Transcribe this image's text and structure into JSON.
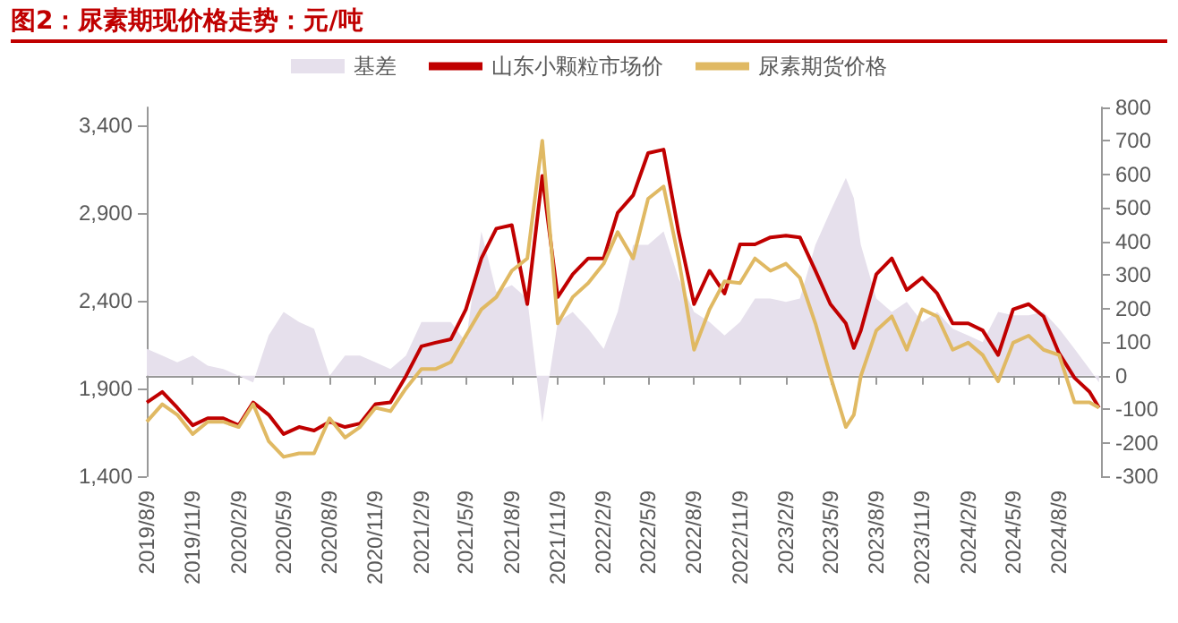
{
  "chart_data": {
    "type": "line",
    "title": "图2：尿素期现价格走势：元/吨",
    "x": [
      "2019-08-09",
      "2019-09-09",
      "2019-10-09",
      "2019-11-09",
      "2019-12-09",
      "2020-01-09",
      "2020-02-09",
      "2020-03-09",
      "2020-04-09",
      "2020-05-09",
      "2020-06-09",
      "2020-07-09",
      "2020-08-09",
      "2020-09-09",
      "2020-10-09",
      "2020-11-09",
      "2020-12-09",
      "2021-01-09",
      "2021-02-09",
      "2021-03-09",
      "2021-04-09",
      "2021-05-09",
      "2021-06-09",
      "2021-07-09",
      "2021-08-09",
      "2021-09-09",
      "2021-10-09",
      "2021-11-09",
      "2021-12-09",
      "2022-01-09",
      "2022-02-09",
      "2022-03-09",
      "2022-04-09",
      "2022-05-09",
      "2022-06-09",
      "2022-07-09",
      "2022-08-09",
      "2022-09-09",
      "2022-10-09",
      "2022-11-09",
      "2022-12-09",
      "2023-01-09",
      "2023-02-09",
      "2023-03-09",
      "2023-04-09",
      "2023-05-09",
      "2023-06-09",
      "2023-06-25",
      "2023-07-09",
      "2023-08-09",
      "2023-09-09",
      "2023-10-09",
      "2023-11-09",
      "2023-12-09",
      "2024-01-09",
      "2024-02-09",
      "2024-03-09",
      "2024-04-09",
      "2024-05-09",
      "2024-06-09",
      "2024-07-09",
      "2024-08-09",
      "2024-09-09",
      "2024-10-09",
      "2024-10-28"
    ],
    "series": [
      {
        "name": "基差",
        "type": "area",
        "axis": "y2",
        "color": "#e6e0ec",
        "values": [
          80,
          60,
          40,
          60,
          30,
          20,
          0,
          -20,
          120,
          190,
          160,
          140,
          0,
          60,
          60,
          40,
          20,
          60,
          160,
          160,
          160,
          100,
          430,
          250,
          270,
          230,
          -140,
          160,
          190,
          140,
          80,
          190,
          390,
          390,
          430,
          290,
          190,
          160,
          120,
          160,
          230,
          230,
          220,
          230,
          390,
          490,
          590,
          530,
          390,
          230,
          190,
          220,
          160,
          190,
          140,
          120,
          100,
          190,
          180,
          180,
          190,
          140,
          80,
          20,
          -20
        ]
      },
      {
        "name": "山东小颗粒市场价",
        "color": "#c00000",
        "values": [
          1820,
          1880,
          1790,
          1690,
          1730,
          1730,
          1690,
          1820,
          1750,
          1640,
          1680,
          1660,
          1710,
          1680,
          1700,
          1810,
          1820,
          1970,
          2140,
          2160,
          2180,
          2350,
          2640,
          2810,
          2830,
          2380,
          3110,
          2420,
          2550,
          2640,
          2640,
          2900,
          3000,
          3240,
          3260,
          2790,
          2380,
          2570,
          2440,
          2720,
          2720,
          2760,
          2770,
          2760,
          2570,
          2380,
          2270,
          2130,
          2230,
          2550,
          2640,
          2460,
          2530,
          2440,
          2270,
          2270,
          2230,
          2090,
          2350,
          2380,
          2310,
          2100,
          1960,
          1880,
          1790
        ]
      },
      {
        "name": "尿素期货价格",
        "color": "#e0b963",
        "values": [
          1710,
          1810,
          1750,
          1640,
          1710,
          1710,
          1680,
          1810,
          1600,
          1510,
          1530,
          1530,
          1730,
          1620,
          1680,
          1790,
          1770,
          1900,
          2010,
          2010,
          2050,
          2200,
          2350,
          2420,
          2570,
          2640,
          3310,
          2270,
          2420,
          2500,
          2610,
          2790,
          2640,
          2980,
          3050,
          2640,
          2120,
          2350,
          2510,
          2500,
          2640,
          2570,
          2610,
          2530,
          2270,
          1970,
          1680,
          1750,
          1970,
          2230,
          2310,
          2120,
          2350,
          2310,
          2120,
          2160,
          2090,
          1940,
          2160,
          2200,
          2120,
          2090,
          1820,
          1820,
          1790
        ]
      }
    ],
    "xlim": [
      "2019-08-09",
      "2024-11-01"
    ],
    "xticks": [
      {
        "value": "2019-08-09",
        "label": "2019/8/9"
      },
      {
        "value": "2019-11-09",
        "label": "2019/11/9"
      },
      {
        "value": "2020-02-09",
        "label": "2020/2/9"
      },
      {
        "value": "2020-05-09",
        "label": "2020/5/9"
      },
      {
        "value": "2020-08-09",
        "label": "2020/8/9"
      },
      {
        "value": "2020-11-09",
        "label": "2020/11/9"
      },
      {
        "value": "2021-02-09",
        "label": "2021/2/9"
      },
      {
        "value": "2021-05-09",
        "label": "2021/5/9"
      },
      {
        "value": "2021-08-09",
        "label": "2021/8/9"
      },
      {
        "value": "2021-11-09",
        "label": "2021/11/9"
      },
      {
        "value": "2022-02-09",
        "label": "2022/2/9"
      },
      {
        "value": "2022-05-09",
        "label": "2022/5/9"
      },
      {
        "value": "2022-08-09",
        "label": "2022/8/9"
      },
      {
        "value": "2022-11-09",
        "label": "2022/11/9"
      },
      {
        "value": "2023-02-09",
        "label": "2023/2/9"
      },
      {
        "value": "2023-05-09",
        "label": "2023/5/9"
      },
      {
        "value": "2023-08-09",
        "label": "2023/8/9"
      },
      {
        "value": "2023-11-09",
        "label": "2023/11/9"
      },
      {
        "value": "2024-02-09",
        "label": "2024/2/9"
      },
      {
        "value": "2024-05-09",
        "label": "2024/5/9"
      },
      {
        "value": "2024-08-09",
        "label": "2024/8/9"
      }
    ],
    "ylim": [
      1400,
      3500
    ],
    "yticks": [
      {
        "value": 1400,
        "label": "1,400"
      },
      {
        "value": 1900,
        "label": "1,900"
      },
      {
        "value": 2400,
        "label": "2,400"
      },
      {
        "value": 2900,
        "label": "2,900"
      },
      {
        "value": 3400,
        "label": "3,400"
      }
    ],
    "y2lim": [
      -300,
      800
    ],
    "y2ticks": [
      -300,
      -200,
      -100,
      0,
      100,
      200,
      300,
      400,
      500,
      600,
      700,
      800
    ],
    "legend": "top",
    "marker": "none"
  }
}
